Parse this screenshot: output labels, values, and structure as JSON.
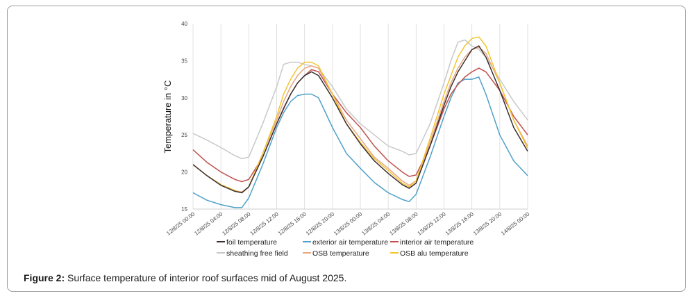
{
  "caption": {
    "label": "Figure 2:",
    "text": "Surface temperature of interior roof surfaces mid of August 2025."
  },
  "chart_data": {
    "type": "line",
    "title": "",
    "xlabel": "",
    "ylabel": "Temperature in °C",
    "ylim": [
      15,
      40
    ],
    "yticks": [
      15,
      20,
      25,
      30,
      35,
      40
    ],
    "xlim": [
      0,
      48
    ],
    "grid": "vertical",
    "legend_position": "bottom",
    "x_tick_labels": [
      "12/8/25 00:00",
      "12/8/25 04:00",
      "12/8/25 08:00",
      "12/8/25 12:00",
      "12/8/25 16:00",
      "12/8/25 20:00",
      "13/8/25 00:00",
      "13/8/25 04:00",
      "13/8/25 08:00",
      "13/8/25 12:00",
      "13/8/25 16:00",
      "13/8/25 20:00",
      "14/8/25 00:00"
    ],
    "x_hours": [
      0,
      2,
      4,
      6,
      7,
      8,
      10,
      12,
      13,
      14,
      15,
      16,
      17,
      18,
      20,
      22,
      24,
      26,
      28,
      30,
      31,
      32,
      34,
      36,
      37,
      38,
      39,
      40,
      41,
      42,
      44,
      46,
      48
    ],
    "series": [
      {
        "name": "foil temperature",
        "color": "#3a2f30",
        "values": [
          21,
          19.5,
          18.2,
          17.4,
          17.2,
          18,
          22,
          26.5,
          28.6,
          30.5,
          32,
          33,
          33.5,
          33,
          30,
          26.5,
          23.8,
          21.5,
          19.8,
          18.3,
          17.8,
          18.5,
          23.5,
          29,
          31.5,
          33.5,
          35,
          36.5,
          37,
          35.5,
          31,
          26,
          22.8
        ]
      },
      {
        "name": "exterior air temperature",
        "color": "#4fa0c8",
        "values": [
          17.2,
          16.2,
          15.6,
          15.2,
          15.2,
          16.5,
          21,
          26,
          28,
          29.5,
          30.3,
          30.5,
          30.5,
          30,
          26,
          22.5,
          20.5,
          18.6,
          17.2,
          16.3,
          16,
          17,
          22,
          27.5,
          30,
          32,
          32.5,
          32.5,
          32.8,
          30.5,
          25,
          21.5,
          19.5
        ]
      },
      {
        "name": "interior air temperature",
        "color": "#c0504d",
        "values": [
          23,
          21.3,
          20,
          19,
          18.7,
          19,
          22,
          26.5,
          28.5,
          30.5,
          32,
          33,
          33.8,
          33.5,
          30.5,
          28,
          26,
          23.5,
          21.5,
          20,
          19.4,
          19.6,
          23.5,
          28.5,
          30.5,
          31.8,
          32.8,
          33.5,
          34,
          33.5,
          31,
          27.5,
          25
        ]
      },
      {
        "name": "sheathing free field",
        "color": "#c8c8c8",
        "values": [
          25.2,
          24.3,
          23.3,
          22.2,
          21.8,
          22,
          26.5,
          31.5,
          34.5,
          34.8,
          34.8,
          34.5,
          34.3,
          34,
          31.5,
          28.5,
          26.5,
          25,
          23.5,
          22.8,
          22.3,
          22.5,
          26.5,
          32,
          35,
          37.5,
          37.8,
          37,
          36.5,
          35.5,
          32.5,
          29.5,
          27
        ]
      },
      {
        "name": "OSB temperature",
        "color": "#e8a882",
        "values": [
          21,
          19.5,
          18.3,
          17.5,
          17.3,
          18,
          22.5,
          27,
          29.5,
          31.5,
          33,
          34,
          34.3,
          34,
          30.5,
          27,
          24.5,
          22,
          20.5,
          18.8,
          18.2,
          18.8,
          24,
          29.5,
          32,
          34,
          35.5,
          36.5,
          36.8,
          36,
          32,
          27,
          23.5
        ]
      },
      {
        "name": "OSB alu temperature",
        "color": "#f4c430",
        "values": [
          21,
          19.5,
          18.3,
          17.5,
          17.2,
          18,
          22.5,
          27.5,
          30.5,
          32.5,
          34,
          34.8,
          34.8,
          34.3,
          30.5,
          26.5,
          24,
          21.8,
          20.2,
          18.5,
          18,
          18.8,
          24.5,
          30.5,
          33,
          35.5,
          37,
          38,
          38.2,
          37,
          32,
          27,
          23.2
        ]
      }
    ],
    "legend_rows": [
      [
        "foil temperature",
        "exterior air temperature",
        "interior air temperature"
      ],
      [
        "sheathing free field",
        "OSB temperature",
        "OSB alu temperature"
      ]
    ]
  }
}
